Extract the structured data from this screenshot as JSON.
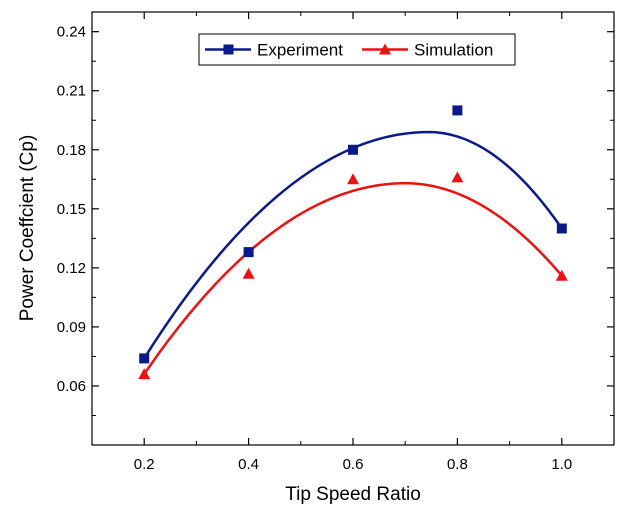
{
  "chart_data": {
    "type": "scatter",
    "title": "",
    "xlabel": "Tip Speed Ratio",
    "ylabel": "Power Coeffcient (Cp)",
    "xlim": [
      0.1,
      1.1
    ],
    "ylim": [
      0.03,
      0.25
    ],
    "x_ticks": [
      0.2,
      0.4,
      0.6,
      0.8,
      1.0
    ],
    "x_tick_labels": [
      "0.2",
      "0.4",
      "0.6",
      "0.8",
      "1.0"
    ],
    "y_ticks": [
      0.06,
      0.09,
      0.12,
      0.15,
      0.18,
      0.21,
      0.24
    ],
    "y_tick_labels": [
      "0.06",
      "0.09",
      "0.12",
      "0.15",
      "0.18",
      "0.21",
      "0.24"
    ],
    "grid": false,
    "legend_position": "top-center",
    "series": [
      {
        "name": "Experiment",
        "marker": "square",
        "color": "#0a1a8a",
        "x": [
          0.2,
          0.4,
          0.6,
          0.8,
          1.0
        ],
        "y": [
          0.074,
          0.128,
          0.18,
          0.2,
          0.14
        ],
        "fit_curve": {
          "peak_x": 0.745,
          "peak_y": 0.189,
          "x_range": [
            0.2,
            1.0
          ]
        }
      },
      {
        "name": "Simulation",
        "marker": "triangle",
        "color": "#ee1111",
        "x": [
          0.2,
          0.4,
          0.6,
          0.8,
          1.0
        ],
        "y": [
          0.066,
          0.117,
          0.165,
          0.166,
          0.116
        ],
        "fit_curve": {
          "peak_x": 0.7,
          "peak_y": 0.163,
          "x_range": [
            0.2,
            1.0
          ]
        }
      }
    ]
  }
}
